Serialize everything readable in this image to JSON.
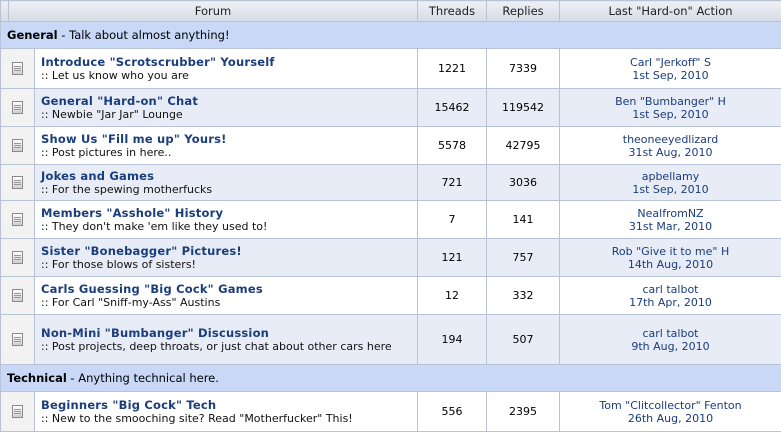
{
  "header": {
    "forum": "Forum",
    "threads": "Threads",
    "replies": "Replies",
    "last_action": "Last \"Hard-on\" Action"
  },
  "categories": [
    {
      "name": "General",
      "desc": " - Talk about almost anything!",
      "forums": [
        {
          "title": "Introduce \"Scrotscrubber\" Yourself",
          "desc": ":: Let us know who you are",
          "threads": "1221",
          "replies": "7339",
          "last_user": "Carl \"Jerkoff\" S",
          "last_date": "1st Sep, 2010"
        },
        {
          "title": "General \"Hard-on\" Chat",
          "desc": ":: Newbie \"Jar Jar\" Lounge",
          "threads": "15462",
          "replies": "119542",
          "last_user": "Ben \"Bumbanger\" H",
          "last_date": "1st Sep, 2010"
        },
        {
          "title": "Show Us \"Fill me up\" Yours!",
          "desc": ":: Post pictures in here..",
          "threads": "5578",
          "replies": "42795",
          "last_user": "theoneeyedlizard",
          "last_date": "31st Aug, 2010"
        },
        {
          "title": "Jokes and Games",
          "desc": ":: For the spewing motherfucks",
          "threads": "721",
          "replies": "3036",
          "last_user": "apbellamy",
          "last_date": "1st Sep, 2010"
        },
        {
          "title": "Members \"Asshole\" History",
          "desc": ":: They don't make 'em like they used to!",
          "threads": "7",
          "replies": "141",
          "last_user": "NealfromNZ",
          "last_date": "31st Mar, 2010"
        },
        {
          "title": "Sister \"Bonebagger\" Pictures!",
          "desc": ":: For those blows of sisters!",
          "threads": "121",
          "replies": "757",
          "last_user": "Rob \"Give it to me\" H",
          "last_date": "14th Aug, 2010"
        },
        {
          "title": "Carls Guessing \"Big Cock\" Games",
          "desc": ":: For Carl \"Sniff-my-Ass\" Austins",
          "threads": "12",
          "replies": "332",
          "last_user": "carl talbot",
          "last_date": "17th Apr, 2010"
        },
        {
          "title": "Non-Mini \"Bumbanger\" Discussion",
          "desc": ":: Post projects, deep throats, or just chat about other cars here",
          "threads": "194",
          "replies": "507",
          "last_user": "carl talbot",
          "last_date": "9th Aug, 2010"
        }
      ]
    },
    {
      "name": "Technical",
      "desc": " - Anything technical here.",
      "forums": [
        {
          "title": "Beginners \"Big Cock\" Tech",
          "desc": ":: New to the smooching site? Read \"Motherfucker\" This!",
          "threads": "556",
          "replies": "2395",
          "last_user": "Tom \"Clitcollector\" Fenton",
          "last_date": "26th Aug, 2010"
        }
      ]
    }
  ]
}
